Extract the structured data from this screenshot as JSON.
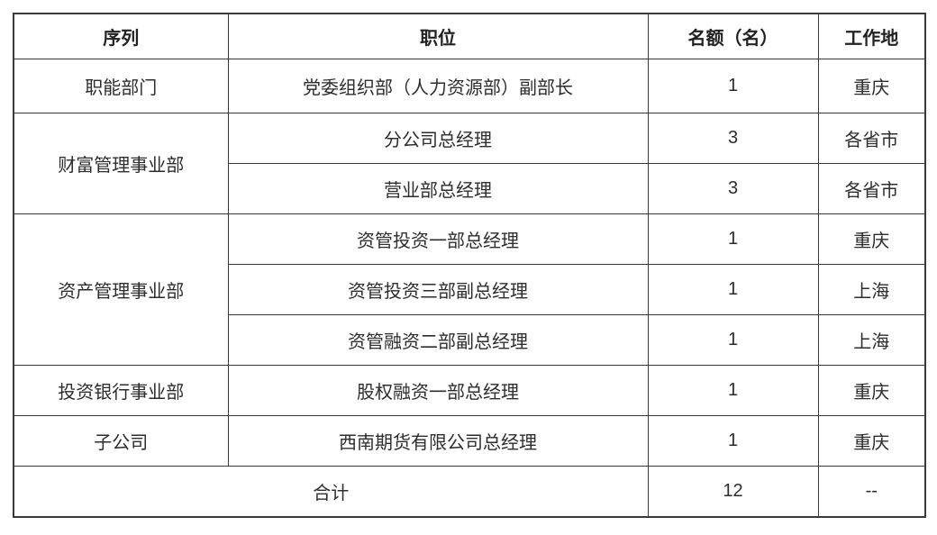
{
  "page": {
    "background_color": "#ffffff"
  },
  "table": {
    "border_color": "#3a3a3a",
    "text_color": "#2d2d2d",
    "headers": {
      "sequence": "序列",
      "position": "职位",
      "quota": "名额（名）",
      "location": "工作地"
    },
    "rows": [
      {
        "dept": "职能部门",
        "position": "党委组织部（人力资源部）副部长",
        "quota": "1",
        "location": "重庆"
      },
      {
        "dept": "财富管理事业部",
        "position": "分公司总经理",
        "quota": "3",
        "location": "各省市"
      },
      {
        "position": "营业部总经理",
        "quota": "3",
        "location": "各省市"
      },
      {
        "dept": "资产管理事业部",
        "position": "资管投资一部总经理",
        "quota": "1",
        "location": "重庆"
      },
      {
        "position": "资管投资三部副总经理",
        "quota": "1",
        "location": "上海"
      },
      {
        "position": "资管融资二部副总经理",
        "quota": "1",
        "location": "上海"
      },
      {
        "dept": "投资银行事业部",
        "position": "股权融资一部总经理",
        "quota": "1",
        "location": "重庆"
      },
      {
        "dept": "子公司",
        "position": "西南期货有限公司总经理",
        "quota": "1",
        "location": "重庆"
      }
    ],
    "total_row": {
      "label": "合计",
      "quota": "12",
      "location": "--"
    }
  },
  "chart_data": {
    "type": "table",
    "columns": [
      "序列",
      "职位",
      "名额（名）",
      "工作地"
    ],
    "rows": [
      [
        "职能部门",
        "党委组织部（人力资源部）副部长",
        1,
        "重庆"
      ],
      [
        "财富管理事业部",
        "分公司总经理",
        3,
        "各省市"
      ],
      [
        "财富管理事业部",
        "营业部总经理",
        3,
        "各省市"
      ],
      [
        "资产管理事业部",
        "资管投资一部总经理",
        1,
        "重庆"
      ],
      [
        "资产管理事业部",
        "资管投资三部副总经理",
        1,
        "上海"
      ],
      [
        "资产管理事业部",
        "资管融资二部副总经理",
        1,
        "上海"
      ],
      [
        "投资银行事业部",
        "股权融资一部总经理",
        1,
        "重庆"
      ],
      [
        "子公司",
        "西南期货有限公司总经理",
        1,
        "重庆"
      ]
    ],
    "total": {
      "label": "合计",
      "quota_total": 12,
      "location": "--"
    },
    "merged_cells": [
      {
        "column": "序列",
        "value": "财富管理事业部",
        "rowspan": 2
      },
      {
        "column": "序列",
        "value": "资产管理事业部",
        "rowspan": 3
      },
      {
        "column": "合计",
        "colspan": 2
      }
    ],
    "title": "",
    "grid": true,
    "legend": false
  }
}
